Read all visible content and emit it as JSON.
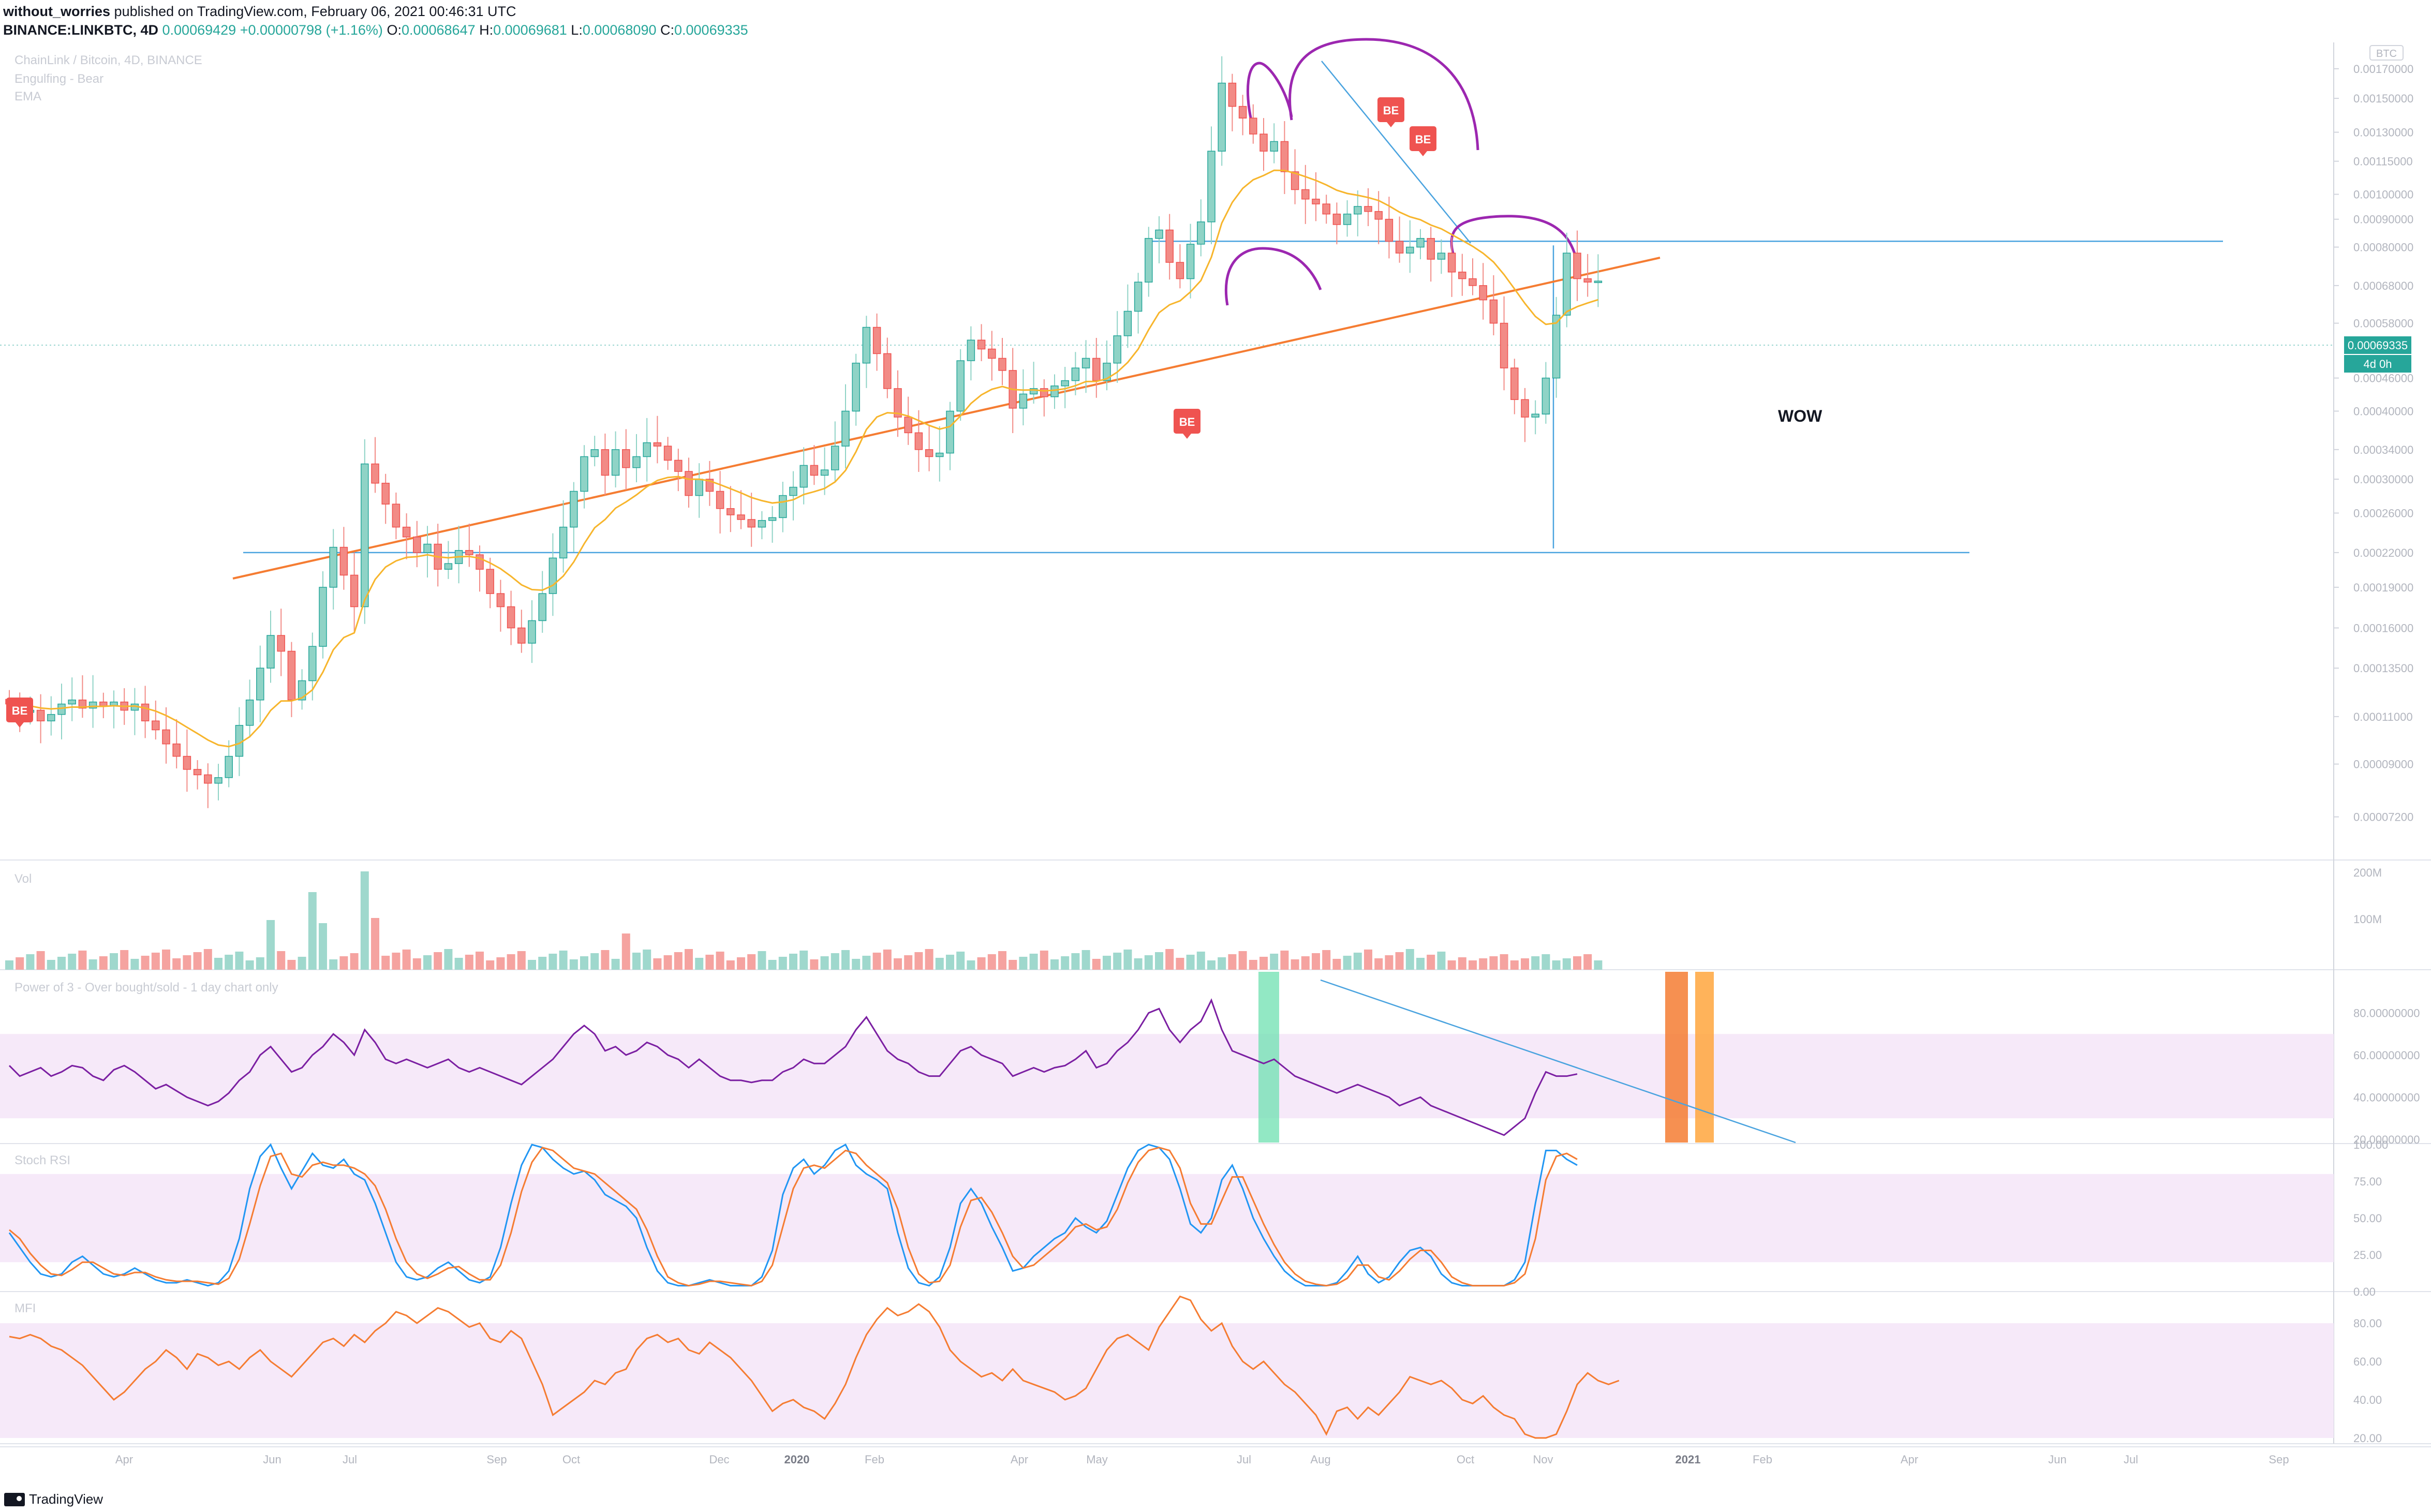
{
  "header": {
    "author": "without_worries",
    "published_text": "published on TradingView.com, February 06, 2021 00:46:31 UTC",
    "symbol": "BINANCE:LINKBTC, 4D",
    "last": "0.00069429",
    "change": "+0.00000798 (+1.16%)",
    "o_label": "O:",
    "o_value": "0.00068647",
    "h_label": "H:",
    "h_value": "0.00069681",
    "l_label": "L:",
    "l_value": "0.00068090",
    "c_label": "C:",
    "c_value": "0.00069335"
  },
  "legend": {
    "title": "ChainLink / Bitcoin, 4D, BINANCE",
    "study1": "Engulfing - Bear",
    "study2": "EMA"
  },
  "annotations": {
    "wow": "WOW",
    "be_label": "BE"
  },
  "price_badge": {
    "price": "0.00069335",
    "countdown": "4d 0h"
  },
  "currency_label": "BTC",
  "logo_text": "TradingView",
  "colors": {
    "up": "#26a69a",
    "up_fill": "#8fd3c6",
    "down": "#ef5350",
    "down_fill": "#f28b86",
    "ema": "#f7b52c",
    "trend_orange": "#f57c32",
    "hline_blue": "#4aa3df",
    "arc_purple": "#9c27b0",
    "osc_line": "#7b1fa2",
    "band_fill": "#f6e9f9",
    "stoch_k": "#2196f3",
    "stoch_d": "#f57c32",
    "mfi_line": "#f57c32",
    "be_badge": "#ef5350"
  },
  "chart_data": [
    {
      "type": "candlestick",
      "pane": "price",
      "scale": "log",
      "x_ticks": [
        "Apr",
        "Jun",
        "Jul",
        "Sep",
        "Oct",
        "Dec",
        "2020",
        "Feb",
        "Apr",
        "May",
        "Jul",
        "Aug",
        "Oct",
        "Nov",
        "2021",
        "Feb",
        "Apr",
        "Jun",
        "Jul",
        "Sep"
      ],
      "y_ticks": [
        "0.00170000",
        "0.00150000",
        "0.00130000",
        "0.00115000",
        "0.00100000",
        "0.00090000",
        "0.00080000",
        "0.00068000",
        "0.00058000",
        "0.00046000",
        "0.00040000",
        "0.00034000",
        "0.00030000",
        "0.00026000",
        "0.00022000",
        "0.00019000",
        "0.00016000",
        "0.00013500",
        "0.00011000",
        "0.00009000",
        "0.00007200"
      ],
      "ylim": [
        6e-05,
        0.0019
      ],
      "candles_close": [
        0.000116,
        0.000112,
        0.000113,
        0.000108,
        0.000111,
        0.000116,
        0.000118,
        0.000114,
        0.000117,
        0.000115,
        0.000117,
        0.000113,
        0.000116,
        0.000108,
        0.000104,
        9.8e-05,
        9.3e-05,
        8.8e-05,
        8.6e-05,
        8.3e-05,
        8.5e-05,
        9.3e-05,
        0.000106,
        0.000118,
        0.000135,
        0.000155,
        0.000145,
        0.000118,
        0.000128,
        0.000148,
        0.00019,
        0.000225,
        0.0002,
        0.000175,
        0.00032,
        0.000295,
        0.00027,
        0.000245,
        0.000235,
        0.00022,
        0.000228,
        0.000205,
        0.00021,
        0.000222,
        0.000218,
        0.000205,
        0.000185,
        0.000175,
        0.00016,
        0.00015,
        0.000165,
        0.000185,
        0.000215,
        0.000245,
        0.000285,
        0.00033,
        0.00034,
        0.000305,
        0.00034,
        0.000315,
        0.00033,
        0.00035,
        0.000345,
        0.000325,
        0.00031,
        0.00028,
        0.0003,
        0.000285,
        0.000265,
        0.000258,
        0.000253,
        0.000245,
        0.000252,
        0.000255,
        0.00028,
        0.00029,
        0.000318,
        0.000305,
        0.000312,
        0.000345,
        0.0004,
        0.00049,
        0.00057,
        0.00051,
        0.00044,
        0.00039,
        0.000365,
        0.00034,
        0.00033,
        0.000335,
        0.0004,
        0.000495,
        0.00054,
        0.00052,
        0.0005,
        0.000475,
        0.000405,
        0.00043,
        0.00044,
        0.000425,
        0.000445,
        0.000455,
        0.00048,
        0.0005,
        0.000455,
        0.00049,
        0.00055,
        0.00061,
        0.00069,
        0.00083,
        0.00086,
        0.00075,
        0.0007,
        0.00081,
        0.00089,
        0.0012,
        0.0016,
        0.00145,
        0.00138,
        0.00129,
        0.0012,
        0.00125,
        0.0011,
        0.00102,
        0.00098,
        0.00096,
        0.00092,
        0.00088,
        0.00092,
        0.00095,
        0.00093,
        0.0009,
        0.00082,
        0.00078,
        0.0008,
        0.00083,
        0.00076,
        0.00078,
        0.00072,
        0.0007,
        0.00068,
        0.00064,
        0.00058,
        0.00048,
        0.00042,
        0.00039,
        0.000395,
        0.00046,
        0.0006,
        0.00078,
        0.0007,
        0.00069,
        0.000693
      ],
      "ema_last": 0.00064,
      "hlines": [
        0.00082,
        0.00022
      ],
      "be_markers": [
        "BE",
        "BE",
        "BE",
        "BE"
      ]
    },
    {
      "type": "bar",
      "pane": "volume",
      "title": "Vol",
      "y_ticks": [
        "200M",
        "100M"
      ]
    },
    {
      "type": "line",
      "pane": "oscillator",
      "title": "Power of 3 - Over bought/sold - 1 day chart only",
      "y_ticks": [
        "80.00000000",
        "60.00000000",
        "40.00000000",
        "20.00000000"
      ],
      "ylim": [
        18,
        100
      ],
      "band": [
        30,
        70
      ],
      "values": [
        55,
        50,
        52,
        54,
        50,
        52,
        55,
        54,
        50,
        48,
        53,
        55,
        52,
        48,
        44,
        46,
        43,
        40,
        38,
        36,
        38,
        42,
        48,
        52,
        60,
        64,
        58,
        52,
        54,
        60,
        64,
        70,
        66,
        60,
        72,
        66,
        58,
        56,
        58,
        56,
        54,
        56,
        58,
        54,
        52,
        54,
        52,
        50,
        48,
        46,
        50,
        54,
        58,
        64,
        70,
        74,
        70,
        62,
        64,
        60,
        62,
        66,
        64,
        60,
        58,
        54,
        58,
        54,
        50,
        48,
        48,
        47,
        48,
        48,
        52,
        54,
        58,
        56,
        56,
        60,
        64,
        72,
        78,
        70,
        62,
        58,
        56,
        52,
        50,
        50,
        56,
        62,
        64,
        60,
        58,
        56,
        50,
        52,
        54,
        52,
        54,
        55,
        58,
        62,
        54,
        56,
        62,
        66,
        72,
        80,
        82,
        72,
        66,
        72,
        76,
        86,
        72,
        62,
        60,
        58,
        56,
        58,
        54,
        50,
        48,
        46,
        44,
        42,
        44,
        46,
        44,
        42,
        40,
        36,
        38,
        40,
        36,
        34,
        32,
        30,
        28,
        26,
        24,
        22,
        26,
        30,
        42,
        52,
        50,
        50,
        51
      ],
      "highlight_bands": [
        "green",
        "orange",
        "orange"
      ]
    },
    {
      "type": "line",
      "pane": "stoch_rsi",
      "title": "Stoch RSI",
      "y_ticks": [
        "100.00",
        "75.00",
        "50.00",
        "25.00",
        "0.00"
      ],
      "ylim": [
        0,
        100
      ],
      "band": [
        20,
        80
      ],
      "series": [
        {
          "values": [
            40,
            30,
            20,
            12,
            10,
            12,
            20,
            24,
            18,
            12,
            10,
            12,
            16,
            12,
            8,
            6,
            6,
            8,
            6,
            4,
            6,
            14,
            36,
            70,
            92,
            100,
            84,
            70,
            82,
            94,
            86,
            84,
            90,
            80,
            76,
            60,
            40,
            20,
            10,
            8,
            10,
            16,
            20,
            14,
            8,
            6,
            10,
            30,
            60,
            86,
            100,
            98,
            90,
            84,
            80,
            82,
            76,
            66,
            62,
            58,
            50,
            30,
            14,
            6,
            4,
            4,
            6,
            8,
            6,
            4,
            4,
            4,
            10,
            28,
            66,
            84,
            90,
            80,
            86,
            96,
            100,
            86,
            80,
            76,
            70,
            40,
            16,
            6,
            4,
            10,
            30,
            60,
            70,
            60,
            44,
            30,
            14,
            16,
            24,
            30,
            36,
            40,
            50,
            44,
            40,
            48,
            66,
            84,
            96,
            100,
            98,
            90,
            70,
            46,
            40,
            50,
            76,
            86,
            70,
            50,
            36,
            24,
            14,
            8,
            4,
            4,
            4,
            6,
            14,
            24,
            12,
            6,
            10,
            20,
            28,
            30,
            24,
            12,
            6,
            4,
            4,
            4,
            4,
            4,
            8,
            20,
            60,
            96,
            96,
            90,
            86
          ]
        },
        {
          "values": [
            42,
            36,
            26,
            18,
            12,
            11,
            15,
            20,
            20,
            16,
            12,
            11,
            13,
            13,
            10,
            8,
            7,
            7,
            7,
            6,
            5,
            9,
            22,
            46,
            72,
            92,
            94,
            80,
            78,
            86,
            88,
            86,
            86,
            84,
            80,
            72,
            56,
            36,
            20,
            12,
            9,
            12,
            16,
            17,
            12,
            8,
            8,
            18,
            40,
            68,
            88,
            98,
            96,
            90,
            84,
            82,
            80,
            74,
            68,
            62,
            56,
            42,
            24,
            10,
            6,
            4,
            5,
            7,
            7,
            6,
            5,
            4,
            7,
            18,
            44,
            70,
            84,
            86,
            84,
            90,
            96,
            94,
            86,
            80,
            74,
            56,
            30,
            12,
            6,
            7,
            18,
            44,
            62,
            64,
            54,
            40,
            24,
            16,
            18,
            24,
            30,
            36,
            44,
            46,
            42,
            44,
            56,
            74,
            88,
            96,
            98,
            96,
            84,
            60,
            46,
            46,
            62,
            78,
            78,
            62,
            46,
            32,
            20,
            12,
            7,
            5,
            4,
            5,
            9,
            18,
            18,
            10,
            8,
            14,
            22,
            28,
            28,
            20,
            10,
            6,
            4,
            4,
            4,
            4,
            6,
            12,
            36,
            76,
            92,
            94,
            90
          ]
        }
      ]
    },
    {
      "type": "line",
      "pane": "mfi",
      "title": "MFI",
      "y_ticks": [
        "80.00",
        "60.00",
        "40.00",
        "20.00"
      ],
      "ylim": [
        17,
        96
      ],
      "band": [
        20,
        80
      ],
      "values": [
        73,
        72,
        74,
        72,
        68,
        66,
        62,
        58,
        52,
        46,
        40,
        44,
        50,
        56,
        60,
        66,
        62,
        56,
        64,
        62,
        58,
        60,
        56,
        62,
        66,
        60,
        56,
        52,
        58,
        64,
        70,
        72,
        68,
        74,
        70,
        76,
        80,
        86,
        84,
        80,
        84,
        88,
        86,
        82,
        78,
        80,
        72,
        70,
        76,
        72,
        60,
        48,
        32,
        36,
        40,
        44,
        50,
        48,
        54,
        56,
        66,
        72,
        74,
        70,
        72,
        66,
        64,
        70,
        66,
        62,
        56,
        50,
        42,
        34,
        38,
        40,
        36,
        34,
        30,
        38,
        48,
        62,
        74,
        82,
        88,
        84,
        86,
        90,
        86,
        78,
        66,
        60,
        56,
        52,
        54,
        50,
        56,
        50,
        48,
        46,
        44,
        40,
        42,
        46,
        56,
        66,
        72,
        74,
        70,
        66,
        78,
        86,
        94,
        92,
        82,
        76,
        80,
        68,
        60,
        56,
        60,
        54,
        48,
        44,
        38,
        32,
        22,
        34,
        36,
        30,
        36,
        32,
        38,
        44,
        52,
        50,
        48,
        50,
        46,
        40,
        38,
        42,
        36,
        32,
        30,
        22,
        20,
        20,
        22,
        34,
        48,
        54,
        50,
        48,
        50
      ]
    }
  ]
}
